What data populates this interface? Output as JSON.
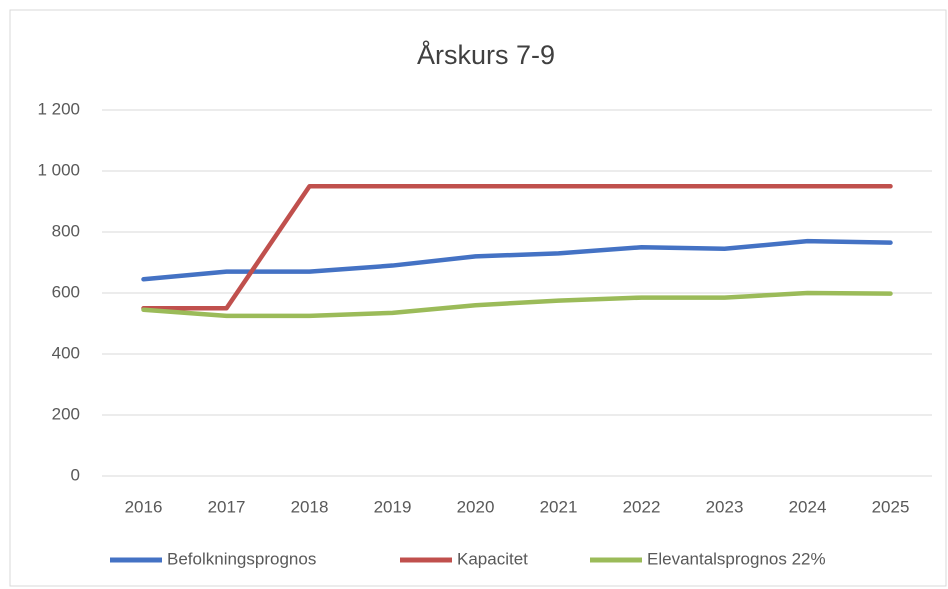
{
  "chart_data": {
    "type": "line",
    "title": "Årskurs 7-9",
    "categories": [
      "2016",
      "2017",
      "2018",
      "2019",
      "2020",
      "2021",
      "2022",
      "2023",
      "2024",
      "2025"
    ],
    "series": [
      {
        "name": "Befolkningsprognos",
        "color": "#4472c4",
        "values": [
          645,
          670,
          670,
          690,
          720,
          730,
          750,
          745,
          770,
          765
        ]
      },
      {
        "name": "Kapacitet",
        "color": "#c0504d",
        "values": [
          550,
          550,
          950,
          950,
          950,
          950,
          950,
          950,
          950,
          950
        ]
      },
      {
        "name": "Elevantalsprognos 22%",
        "color": "#9bbb59",
        "values": [
          545,
          525,
          525,
          535,
          560,
          575,
          585,
          585,
          600,
          598
        ]
      }
    ],
    "ylim": [
      0,
      1200
    ],
    "yticks": [
      0,
      200,
      400,
      600,
      800,
      {
        "value": 1000,
        "label": "1 000"
      },
      {
        "value": 1200,
        "label": "1 200"
      }
    ],
    "grid": true,
    "legend": "bottom"
  }
}
